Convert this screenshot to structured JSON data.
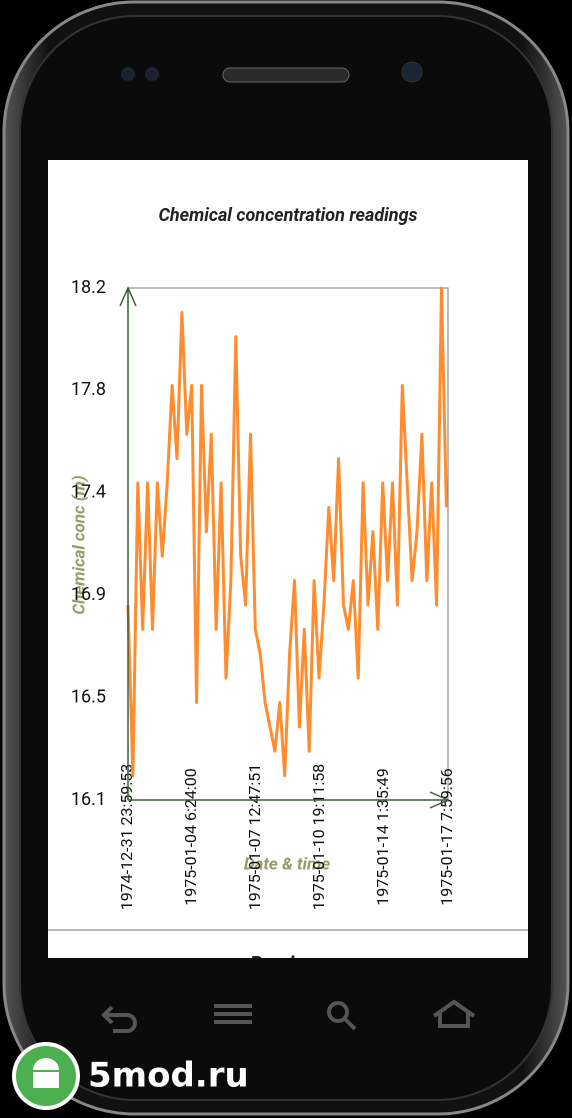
{
  "chart_data": {
    "type": "line",
    "title": "Chemical concentration readings",
    "x_label": "Date & time",
    "y_label": "Chemical conc (m)",
    "x": [
      "1975-01-01 0:00:00",
      "1975-01-01 6:00:00",
      "1975-01-01 12:00:00",
      "1975-01-01 18:00:00",
      "1975-01-02 0:00:00",
      "1975-01-02 6:00:00",
      "1975-01-02 12:00:00",
      "1975-01-02 18:00:00",
      "1975-01-03 0:00:00",
      "1975-01-03 6:00:00",
      "1975-01-03 12:00:00",
      "1975-01-03 18:00:00",
      "1975-01-04 0:00:00",
      "1975-01-04 6:00:00",
      "1975-01-04 12:00:00",
      "1975-01-04 18:00:00",
      "1975-01-05 0:00:00",
      "1975-01-05 6:00:00",
      "1975-01-05 12:00:00",
      "1975-01-05 18:00:00",
      "1975-01-06 0:00:00",
      "1975-01-06 6:00:00",
      "1975-01-06 12:00:00",
      "1975-01-06 18:00:00",
      "1975-01-07 0:00:00",
      "1975-01-07 6:00:00",
      "1975-01-07 12:00:00",
      "1975-01-07 18:00:00",
      "1975-01-08 0:00:00",
      "1975-01-08 6:00:00",
      "1975-01-08 12:00:00",
      "1975-01-08 18:00:00",
      "1975-01-09 0:00:00",
      "1975-01-09 6:00:00",
      "1975-01-09 12:00:00",
      "1975-01-09 18:00:00",
      "1975-01-10 0:00:00",
      "1975-01-10 6:00:00",
      "1975-01-10 12:00:00",
      "1975-01-10 18:00:00",
      "1975-01-11 0:00:00",
      "1975-01-11 6:00:00",
      "1975-01-11 12:00:00",
      "1975-01-11 18:00:00",
      "1975-01-12 0:00:00",
      "1975-01-12 6:00:00",
      "1975-01-12 12:00:00",
      "1975-01-12 18:00:00",
      "1975-01-13 0:00:00",
      "1975-01-13 6:00:00",
      "1975-01-13 12:00:00",
      "1975-01-13 18:00:00",
      "1975-01-14 0:00:00",
      "1975-01-14 6:00:00",
      "1975-01-14 12:00:00",
      "1975-01-14 18:00:00",
      "1975-01-15 0:00:00",
      "1975-01-15 6:00:00",
      "1975-01-15 12:00:00",
      "1975-01-15 18:00:00",
      "1975-01-16 0:00:00",
      "1975-01-16 6:00:00",
      "1975-01-16 12:00:00",
      "1975-01-16 18:00:00",
      "1975-01-17 0:00:00",
      "1975-01-17 6:00:00"
    ],
    "series": [
      {
        "color": "#ff8c2e",
        "values": [
          16.9,
          16.2,
          17.4,
          16.8,
          17.4,
          16.8,
          17.4,
          17.1,
          17.4,
          17.8,
          17.5,
          18.1,
          17.6,
          17.8,
          16.5,
          17.8,
          17.2,
          17.6,
          16.8,
          17.4,
          16.6,
          17.0,
          18.0,
          17.1,
          16.9,
          17.6,
          16.8,
          16.7,
          16.5,
          16.4,
          16.3,
          16.5,
          16.2,
          16.7,
          17.0,
          16.4,
          16.8,
          16.3,
          17.0,
          16.6,
          16.9,
          17.3,
          17.0,
          17.5,
          16.9,
          16.8,
          17.0,
          16.6,
          17.4,
          16.9,
          17.2,
          16.8,
          17.4,
          17.0,
          17.4,
          16.9,
          17.8,
          17.4,
          17.0,
          17.2,
          17.6,
          17.0,
          17.4,
          16.9,
          18.2,
          17.3
        ]
      }
    ],
    "xlim": [
      "1974-12-31 23:59:53",
      "1975-01-17 7:59:56"
    ],
    "xticks": [
      "1974-12-31 23:59:53",
      "1975-01-04 6:24:00",
      "1975-01-07 12:47:51",
      "1975-01-10 19:11:58",
      "1975-01-14 1:35:49",
      "1975-01-17 7:59:56"
    ],
    "ylim": [
      16.1,
      18.2
    ],
    "yticks": [
      16.1,
      {
        "value": 16.52,
        "label": "16.5"
      },
      {
        "value": 16.94,
        "label": "16.9"
      },
      {
        "value": 17.36,
        "label": "17.4"
      },
      {
        "value": 17.78,
        "label": "17.8"
      },
      18.2
    ],
    "grid": false
  },
  "footer": {
    "button": "Read me"
  },
  "watermark": "5mod.ru"
}
